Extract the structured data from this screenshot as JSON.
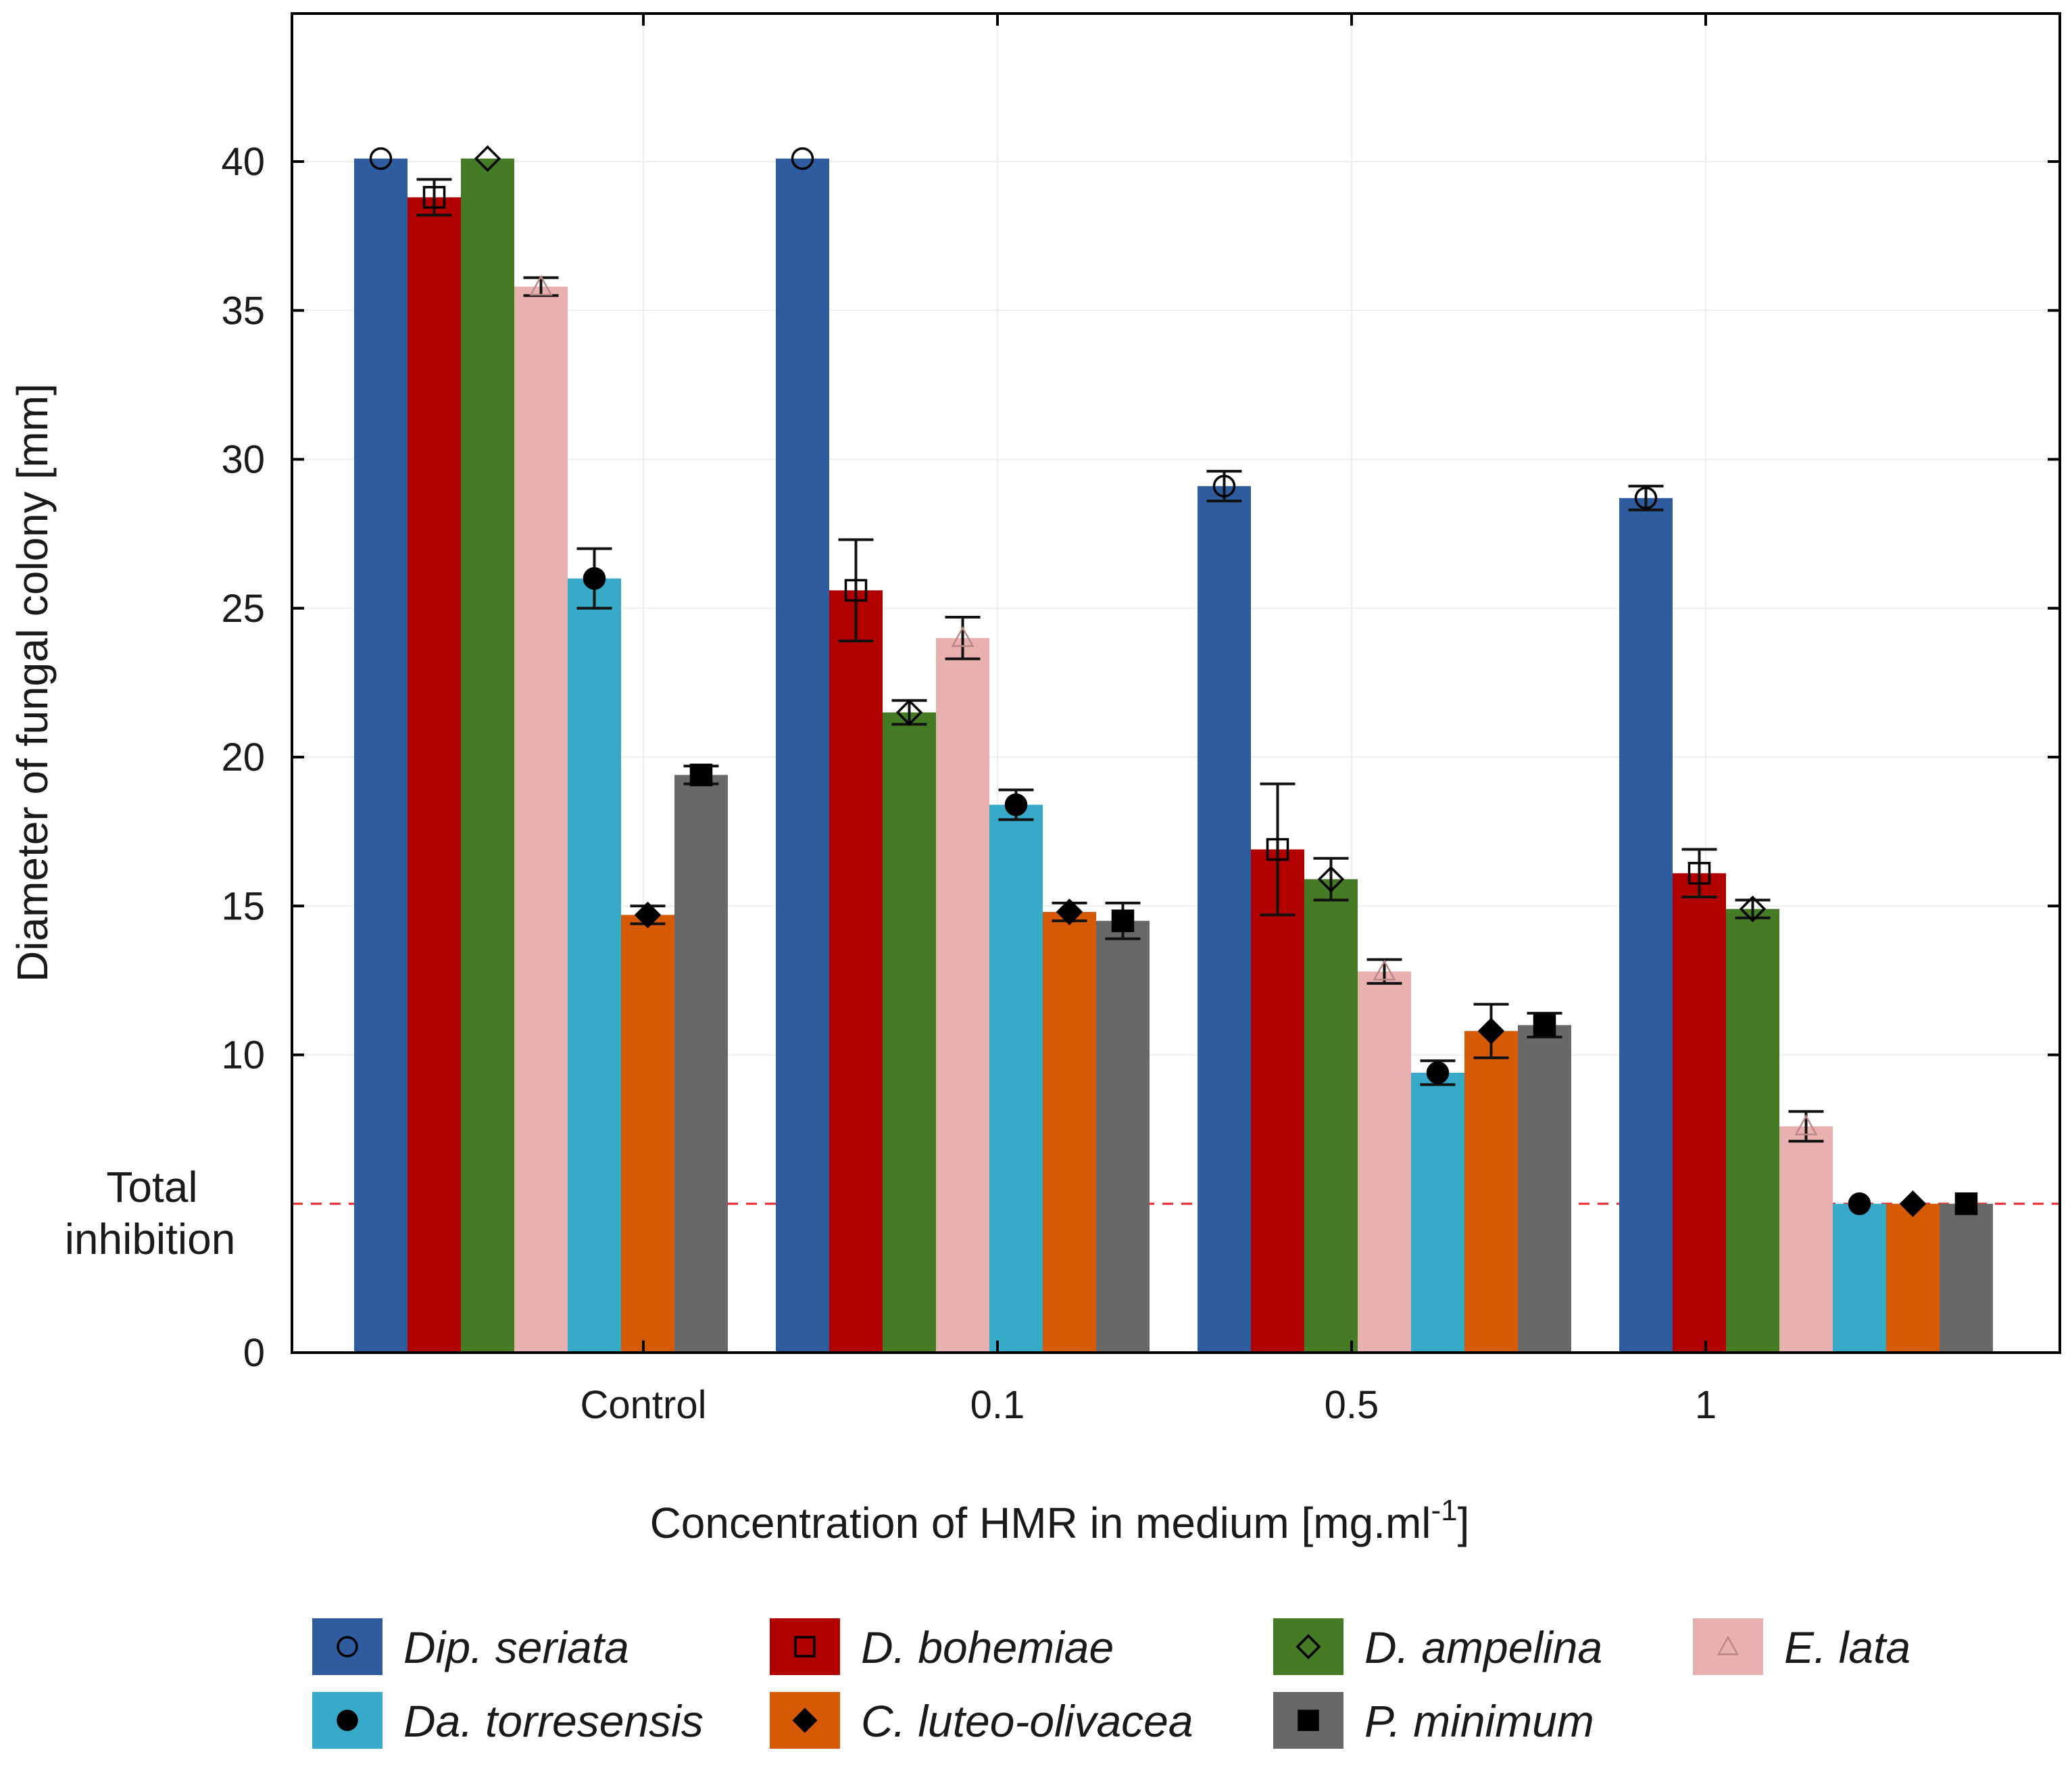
{
  "chart_data": {
    "type": "bar",
    "xlabel": "Concentration of HMR in medium [mg.ml",
    "xlabel_superscript": "-1",
    "xlabel_suffix": "]",
    "ylabel": "Diameter of fungal colony [mm]",
    "ylim": [
      0,
      45
    ],
    "yticks": [
      0,
      10,
      15,
      20,
      25,
      30,
      35,
      40
    ],
    "categories": [
      "Control",
      "0.1",
      "0.5",
      "1"
    ],
    "grid": true,
    "legend_position": "bottom",
    "reference_line": {
      "value": 5,
      "label_line1": "Total",
      "label_line2": "inhibition",
      "color": "#e8262a",
      "style": "dashed"
    },
    "series": [
      {
        "name": "Dip. seriata",
        "color": "#2e5c9e",
        "marker": "open-circle",
        "values": [
          40.1,
          40.1,
          29.1,
          28.7
        ],
        "errors": [
          0,
          0,
          0.5,
          0.4
        ]
      },
      {
        "name": "D. bohemiae",
        "color": "#b00000",
        "marker": "open-square",
        "values": [
          38.8,
          25.6,
          16.9,
          16.1
        ],
        "errors": [
          0.6,
          1.7,
          2.2,
          0.8
        ]
      },
      {
        "name": "D. ampelina",
        "color": "#457b25",
        "marker": "open-diamond",
        "values": [
          40.1,
          21.5,
          15.9,
          14.9
        ],
        "errors": [
          0,
          0.4,
          0.7,
          0.3
        ]
      },
      {
        "name": "E. lata",
        "color": "#e9b0b0",
        "marker": "open-triangle",
        "values": [
          35.8,
          24.0,
          12.8,
          7.6
        ],
        "errors": [
          0.3,
          0.7,
          0.4,
          0.5
        ]
      },
      {
        "name": "Da. torresensis",
        "color": "#38aac9",
        "marker": "filled-circle",
        "values": [
          26.0,
          18.4,
          9.4,
          5.0
        ],
        "errors": [
          1.0,
          0.5,
          0.4,
          0
        ]
      },
      {
        "name": "C. luteo-olivacea",
        "color": "#d65a03",
        "marker": "filled-diamond",
        "values": [
          14.7,
          14.8,
          10.8,
          5.0
        ],
        "errors": [
          0.3,
          0.3,
          0.9,
          0
        ]
      },
      {
        "name": "P. minimum",
        "color": "#686868",
        "marker": "filled-square",
        "values": [
          19.4,
          14.5,
          11.0,
          5.0
        ],
        "errors": [
          0.3,
          0.6,
          0.4,
          0
        ]
      }
    ]
  }
}
